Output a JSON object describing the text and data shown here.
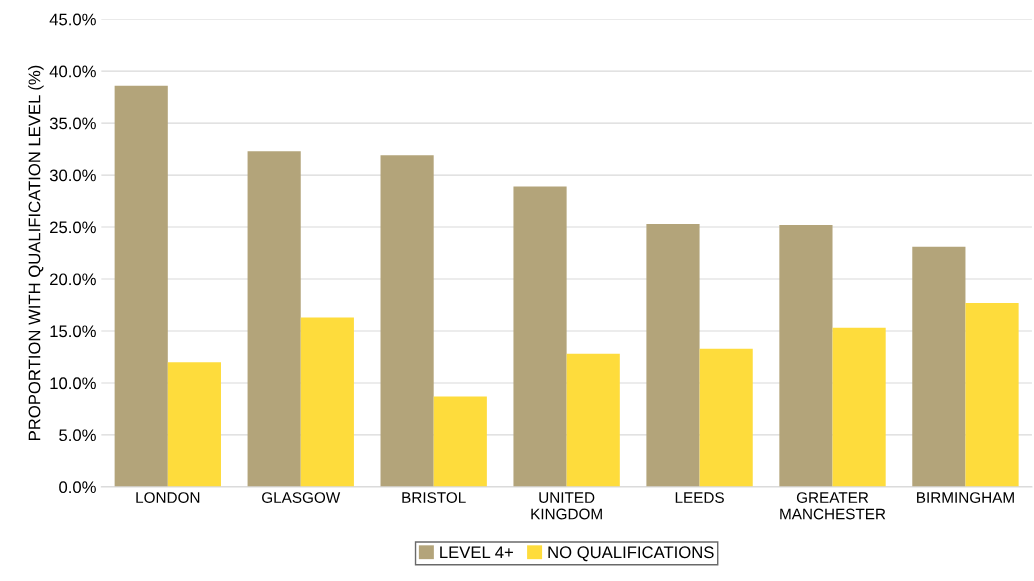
{
  "chart_data": {
    "type": "bar",
    "ylabel": "PROPORTION WITH QUALIFICATION LEVEL (%)",
    "categories": [
      "LONDON",
      "GLASGOW",
      "BRISTOL",
      "UNITED\nKINGDOM",
      "LEEDS",
      "GREATER\nMANCHESTER",
      "BIRMINGHAM"
    ],
    "series": [
      {
        "name": "LEVEL 4+",
        "color": "#b3a47a",
        "values": [
          38.6,
          32.3,
          31.9,
          28.9,
          25.3,
          25.2,
          23.1
        ]
      },
      {
        "name": "NO QUALIFICATIONS",
        "color": "#fedc3c",
        "values": [
          12.0,
          16.3,
          8.7,
          12.8,
          13.3,
          15.3,
          17.7
        ]
      }
    ],
    "ylim": [
      0,
      45
    ],
    "yticks": [
      {
        "value": 0,
        "label": "0.0%"
      },
      {
        "value": 5,
        "label": "5.0%"
      },
      {
        "value": 10,
        "label": "10.0%"
      },
      {
        "value": 15,
        "label": "15.0%"
      },
      {
        "value": 20,
        "label": "20.0%"
      },
      {
        "value": 25,
        "label": "25.0%"
      },
      {
        "value": 30,
        "label": "30.0%"
      },
      {
        "value": 35,
        "label": "35.0%"
      },
      {
        "value": 40,
        "label": "40.0%"
      },
      {
        "value": 45,
        "label": "45.0%"
      }
    ],
    "grid": "y",
    "legend": "bottom"
  }
}
